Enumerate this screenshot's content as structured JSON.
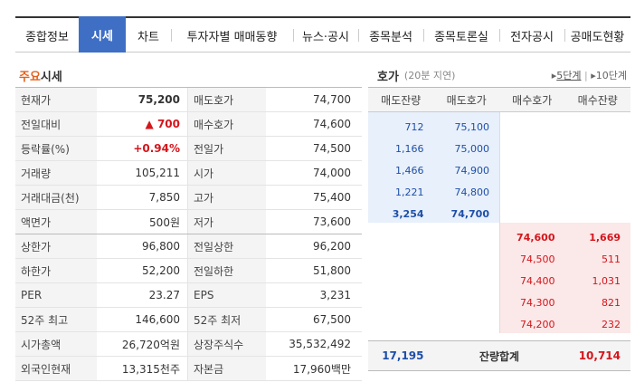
{
  "tabs": [
    "종합정보",
    "시세",
    "차트",
    "투자자별 매매동향",
    "뉴스·공시",
    "종목분석",
    "종목토론실",
    "전자공시",
    "공매도현황"
  ],
  "active_tab": "시세",
  "quote": {
    "title_highlight": "주요",
    "title_rest": "시세",
    "rows": [
      {
        "l1": "현재가",
        "v1": "75,200",
        "l2": "매도호가",
        "v2": "74,700"
      },
      {
        "l1": "전일대비",
        "v1": "▲ 700",
        "l2": "매수호가",
        "v2": "74,600"
      },
      {
        "l1": "등락률(%)",
        "v1": "+0.94%",
        "l2": "전일가",
        "v2": "74,500"
      },
      {
        "l1": "거래량",
        "v1": "105,211",
        "l2": "시가",
        "v2": "74,000"
      },
      {
        "l1": "거래대금(천)",
        "v1": "7,850",
        "l2": "고가",
        "v2": "75,400"
      },
      {
        "l1": "액면가",
        "v1": "500원",
        "l2": "저가",
        "v2": "73,600"
      },
      {
        "l1": "상한가",
        "v1": "96,800",
        "l2": "전일상한",
        "v2": "96,200"
      },
      {
        "l1": "하한가",
        "v1": "52,200",
        "l2": "전일하한",
        "v2": "51,800"
      },
      {
        "l1": "PER",
        "v1": "23.27",
        "l2": "EPS",
        "v2": "3,231"
      },
      {
        "l1": "52주 최고",
        "v1": "146,600",
        "l2": "52주 최저",
        "v2": "67,500"
      },
      {
        "l1": "시가총액",
        "v1": "26,720억원",
        "l2": "상장주식수",
        "v2": "35,532,492"
      },
      {
        "l1": "외국인현재",
        "v1": "13,315천주",
        "l2": "자본금",
        "v2": "17,960백만"
      }
    ]
  },
  "orderbook": {
    "title": "호가",
    "subtitle": "(20분 지연)",
    "opt5": "5단계",
    "opt10": "10단계",
    "columns": [
      "매도잔량",
      "매도호가",
      "매수호가",
      "매수잔량"
    ],
    "asks": [
      {
        "qty": "712",
        "price": "75,100"
      },
      {
        "qty": "1,166",
        "price": "75,000"
      },
      {
        "qty": "1,466",
        "price": "74,900"
      },
      {
        "qty": "1,221",
        "price": "74,800"
      },
      {
        "qty": "3,254",
        "price": "74,700"
      }
    ],
    "bids": [
      {
        "price": "74,600",
        "qty": "1,669"
      },
      {
        "price": "74,500",
        "qty": "511"
      },
      {
        "price": "74,400",
        "qty": "1,031"
      },
      {
        "price": "74,300",
        "qty": "821"
      },
      {
        "price": "74,200",
        "qty": "232"
      }
    ],
    "total_ask": "17,195",
    "total_label": "잔량합계",
    "total_bid": "10,714"
  },
  "colors": {
    "accent": "#3f6fc4",
    "up": "#d4151b",
    "ask_bg": "#e8f0fb",
    "bid_bg": "#fbe8e8"
  }
}
